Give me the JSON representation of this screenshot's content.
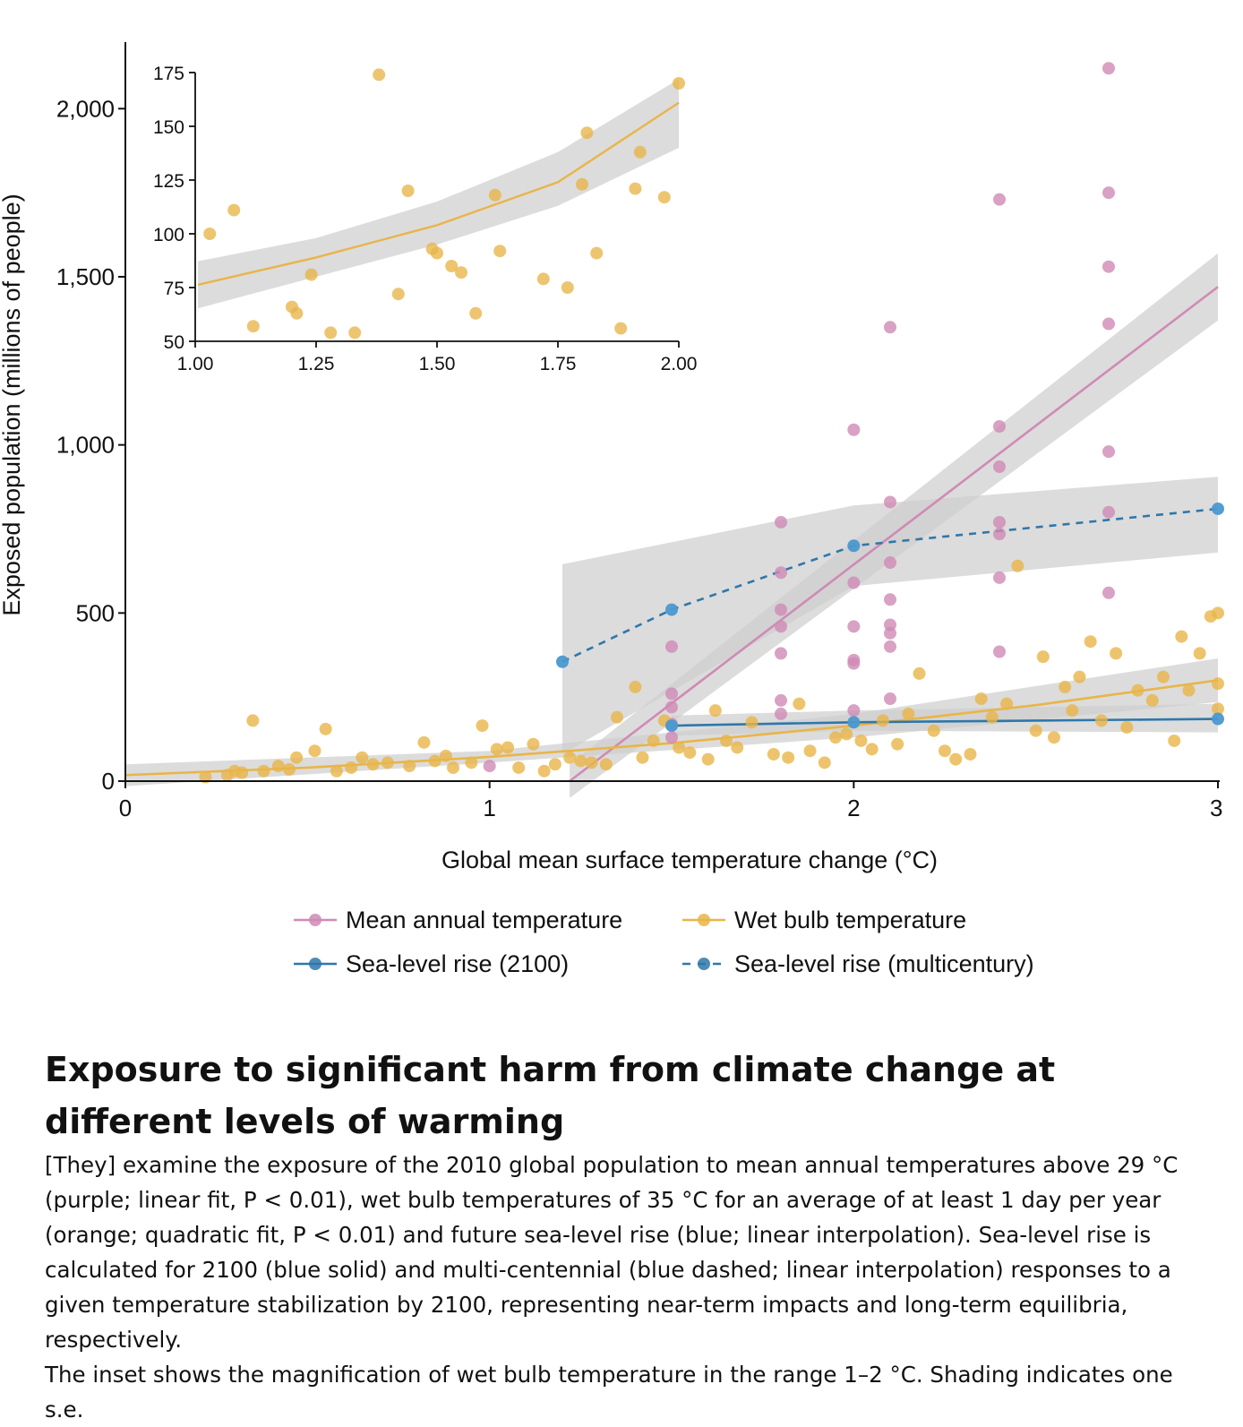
{
  "chart_data": [
    {
      "type": "scatter",
      "title": "",
      "xlabel": "Global mean surface temperature change (°C)",
      "ylabel": "Exposed population (millions of people)",
      "xlim": [
        0,
        3
      ],
      "ylim": [
        0,
        2150
      ],
      "x_ticks": [
        0,
        1,
        2,
        3
      ],
      "x_tick_labels": [
        "0",
        "1",
        "2",
        "3"
      ],
      "y_ticks": [
        0,
        500,
        1000,
        1500,
        2000
      ],
      "y_tick_labels": [
        "0",
        "500",
        "1,000",
        "1,500",
        "2,000"
      ],
      "grid": false,
      "legend_position": "bottom",
      "series": [
        {
          "name": "Mean annual temperature",
          "color": "#cf8ab5",
          "fit": "linear",
          "fit_line": [
            [
              1.22,
              0
            ],
            [
              3.0,
              1470
            ]
          ],
          "band": {
            "x": [
              1.22,
              3.0
            ],
            "lower": [
              -50,
              1370
            ],
            "upper": [
              50,
              1570
            ]
          },
          "points": [
            [
              1.0,
              45
            ],
            [
              1.5,
              400
            ],
            [
              1.5,
              260
            ],
            [
              1.5,
              220
            ],
            [
              1.5,
              170
            ],
            [
              1.5,
              130
            ],
            [
              1.8,
              770
            ],
            [
              1.8,
              620
            ],
            [
              1.8,
              510
            ],
            [
              1.8,
              460
            ],
            [
              1.8,
              380
            ],
            [
              1.8,
              240
            ],
            [
              1.8,
              200
            ],
            [
              2.0,
              1045
            ],
            [
              2.0,
              590
            ],
            [
              2.0,
              460
            ],
            [
              2.0,
              360
            ],
            [
              2.0,
              350
            ],
            [
              2.0,
              210
            ],
            [
              2.1,
              1350
            ],
            [
              2.1,
              830
            ],
            [
              2.1,
              650
            ],
            [
              2.1,
              540
            ],
            [
              2.1,
              465
            ],
            [
              2.1,
              440
            ],
            [
              2.1,
              400
            ],
            [
              2.1,
              245
            ],
            [
              2.4,
              1730
            ],
            [
              2.4,
              1055
            ],
            [
              2.4,
              935
            ],
            [
              2.4,
              770
            ],
            [
              2.4,
              735
            ],
            [
              2.4,
              605
            ],
            [
              2.4,
              385
            ],
            [
              2.7,
              2120
            ],
            [
              2.7,
              1750
            ],
            [
              2.7,
              1530
            ],
            [
              2.7,
              1360
            ],
            [
              2.7,
              980
            ],
            [
              2.7,
              800
            ],
            [
              2.7,
              560
            ]
          ]
        },
        {
          "name": "Wet bulb temperature",
          "color": "#e8b548",
          "fit": "quadratic",
          "fit_line": [
            [
              0,
              18
            ],
            [
              0.5,
              40
            ],
            [
              1.0,
              72
            ],
            [
              1.5,
              113
            ],
            [
              2.0,
              165
            ],
            [
              2.5,
              226
            ],
            [
              3.0,
              300
            ]
          ],
          "band": {
            "x": [
              0,
              1.0,
              2.0,
              3.0
            ],
            "lower": [
              -15,
              55,
              130,
              235
            ],
            "upper": [
              50,
              90,
              200,
              365
            ]
          },
          "points": [
            [
              0.22,
              12
            ],
            [
              0.28,
              18
            ],
            [
              0.3,
              30
            ],
            [
              0.32,
              25
            ],
            [
              0.35,
              180
            ],
            [
              0.38,
              30
            ],
            [
              0.42,
              45
            ],
            [
              0.45,
              35
            ],
            [
              0.47,
              70
            ],
            [
              0.52,
              90
            ],
            [
              0.55,
              155
            ],
            [
              0.58,
              30
            ],
            [
              0.62,
              40
            ],
            [
              0.65,
              70
            ],
            [
              0.68,
              50
            ],
            [
              0.72,
              55
            ],
            [
              0.78,
              45
            ],
            [
              0.82,
              115
            ],
            [
              0.85,
              60
            ],
            [
              0.88,
              75
            ],
            [
              0.9,
              40
            ],
            [
              0.95,
              55
            ],
            [
              0.98,
              165
            ],
            [
              1.02,
              95
            ],
            [
              1.05,
              100
            ],
            [
              1.08,
              40
            ],
            [
              1.12,
              110
            ],
            [
              1.15,
              30
            ],
            [
              1.18,
              50
            ],
            [
              1.22,
              70
            ],
            [
              1.25,
              60
            ],
            [
              1.28,
              55
            ],
            [
              1.32,
              50
            ],
            [
              1.35,
              190
            ],
            [
              1.4,
              280
            ],
            [
              1.42,
              70
            ],
            [
              1.45,
              120
            ],
            [
              1.48,
              180
            ],
            [
              1.52,
              100
            ],
            [
              1.55,
              85
            ],
            [
              1.6,
              65
            ],
            [
              1.62,
              210
            ],
            [
              1.65,
              120
            ],
            [
              1.68,
              100
            ],
            [
              1.72,
              175
            ],
            [
              1.78,
              80
            ],
            [
              1.82,
              70
            ],
            [
              1.85,
              230
            ],
            [
              1.88,
              90
            ],
            [
              1.92,
              55
            ],
            [
              1.95,
              130
            ],
            [
              1.98,
              140
            ],
            [
              2.02,
              120
            ],
            [
              2.05,
              95
            ],
            [
              2.08,
              180
            ],
            [
              2.12,
              110
            ],
            [
              2.15,
              200
            ],
            [
              2.18,
              320
            ],
            [
              2.22,
              150
            ],
            [
              2.25,
              90
            ],
            [
              2.28,
              65
            ],
            [
              2.32,
              80
            ],
            [
              2.35,
              245
            ],
            [
              2.38,
              190
            ],
            [
              2.42,
              230
            ],
            [
              2.45,
              640
            ],
            [
              2.5,
              150
            ],
            [
              2.52,
              370
            ],
            [
              2.55,
              130
            ],
            [
              2.58,
              280
            ],
            [
              2.6,
              210
            ],
            [
              2.62,
              310
            ],
            [
              2.65,
              415
            ],
            [
              2.68,
              180
            ],
            [
              2.72,
              380
            ],
            [
              2.75,
              160
            ],
            [
              2.78,
              270
            ],
            [
              2.82,
              240
            ],
            [
              2.85,
              310
            ],
            [
              2.88,
              120
            ],
            [
              2.9,
              430
            ],
            [
              2.92,
              270
            ],
            [
              2.95,
              380
            ],
            [
              2.98,
              490
            ],
            [
              3.0,
              500
            ],
            [
              3.0,
              290
            ],
            [
              3.0,
              215
            ]
          ]
        },
        {
          "name": "Sea-level rise (2100)",
          "color": "#2f77aa",
          "style": "solid",
          "interpolation": "linear",
          "points": [
            [
              1.5,
              165
            ],
            [
              2.0,
              175
            ],
            [
              3.0,
              185
            ]
          ],
          "band": {
            "x": [
              1.5,
              2.0,
              3.0
            ],
            "lower": [
              135,
              150,
              145
            ],
            "upper": [
              195,
              210,
              230
            ]
          }
        },
        {
          "name": "Sea-level rise (multicentury)",
          "color": "#2f77aa",
          "style": "dashed",
          "interpolation": "linear",
          "points": [
            [
              1.2,
              355
            ],
            [
              1.5,
              510
            ],
            [
              2.0,
              700
            ],
            [
              3.0,
              810
            ]
          ],
          "band": {
            "x": [
              1.2,
              2.0,
              3.0
            ],
            "lower": [
              80,
              580,
              680
            ],
            "upper": [
              645,
              820,
              905
            ]
          }
        }
      ]
    },
    {
      "type": "scatter",
      "title": "",
      "xlabel": "",
      "ylabel": "",
      "note": "Inset: Wet bulb temperature, range 1–2 °C",
      "xlim": [
        1.0,
        2.0
      ],
      "ylim": [
        50,
        175
      ],
      "x_ticks": [
        1.0,
        1.25,
        1.5,
        1.75,
        2.0
      ],
      "x_tick_labels": [
        "1.00",
        "1.25",
        "1.50",
        "1.75",
        "2.00"
      ],
      "y_ticks": [
        50,
        75,
        100,
        125,
        150,
        175
      ],
      "y_tick_labels": [
        "50",
        "75",
        "100",
        "125",
        "150",
        "175"
      ],
      "grid": false,
      "series": [
        {
          "name": "Wet bulb temperature",
          "color": "#e8b548",
          "fit": "quadratic",
          "fit_line": [
            [
              1.0,
              76
            ],
            [
              1.25,
              89
            ],
            [
              1.5,
              104
            ],
            [
              1.75,
              124
            ],
            [
              2.0,
              161
            ]
          ],
          "band": {
            "x": [
              1.0,
              1.25,
              1.5,
              1.75,
              2.0
            ],
            "lower": [
              65,
              80,
              95,
              113,
              140
            ],
            "upper": [
              87,
              98,
              115,
              138,
              172
            ]
          },
          "points": [
            [
              1.03,
              100
            ],
            [
              1.08,
              111
            ],
            [
              1.12,
              57
            ],
            [
              1.2,
              66
            ],
            [
              1.21,
              63
            ],
            [
              1.24,
              81
            ],
            [
              1.28,
              54
            ],
            [
              1.33,
              54
            ],
            [
              1.38,
              174
            ],
            [
              1.42,
              72
            ],
            [
              1.44,
              120
            ],
            [
              1.49,
              93
            ],
            [
              1.5,
              91
            ],
            [
              1.53,
              85
            ],
            [
              1.55,
              82
            ],
            [
              1.58,
              63
            ],
            [
              1.62,
              118
            ],
            [
              1.63,
              92
            ],
            [
              1.72,
              79
            ],
            [
              1.77,
              75
            ],
            [
              1.8,
              123
            ],
            [
              1.81,
              147
            ],
            [
              1.83,
              91
            ],
            [
              1.88,
              56
            ],
            [
              1.91,
              121
            ],
            [
              1.92,
              138
            ],
            [
              1.97,
              117
            ],
            [
              2.0,
              170
            ]
          ]
        }
      ]
    }
  ],
  "legend": [
    {
      "label": "Mean annual temperature",
      "color": "#cf8ab5",
      "style": "solid"
    },
    {
      "label": "Wet bulb temperature",
      "color": "#e8b548",
      "style": "solid"
    },
    {
      "label": "Sea-level rise (2100)",
      "color": "#2f77aa",
      "style": "solid"
    },
    {
      "label": "Sea-level rise (multicentury)",
      "color": "#2f77aa",
      "style": "dashed"
    }
  ],
  "colors": {
    "band": "#cfcfcf"
  },
  "caption": {
    "title": "Exposure to significant harm from climate change at different levels of warming",
    "paragraph1": "[They] examine the exposure of the 2010 global population to mean annual temperatures above 29 °C (purple; linear fit, P < 0.01), wet bulb temperatures of 35 °C for an average of at least 1 day per year (orange; quadratic fit, P < 0.01) and future sea-level rise (blue; linear interpolation). Sea-level rise is calculated for 2100 (blue solid) and multi-centennial (blue dashed; linear interpolation) responses to a given temperature stabilization by 2100, representing near-term impacts and long-term equilibria, respectively.",
    "paragraph2": "The inset shows the magnification of wet bulb temperature in the range 1–2 °C. Shading indicates one s.e."
  }
}
